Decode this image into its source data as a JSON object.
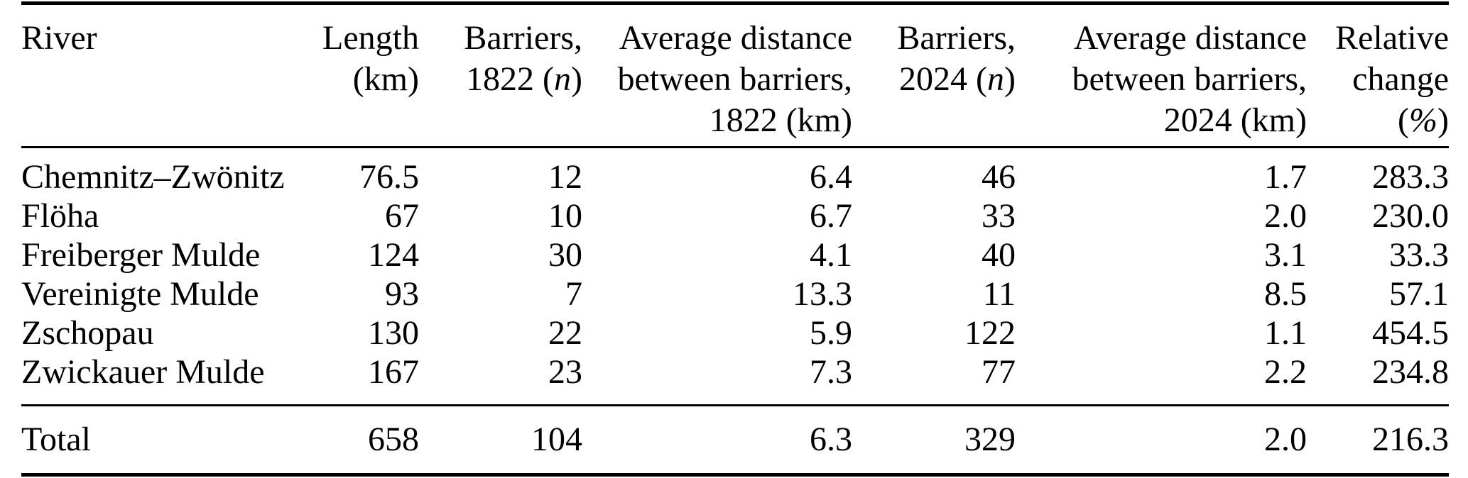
{
  "colors": {
    "background": "#ffffff",
    "text": "#000000",
    "rule": "#000000"
  },
  "table": {
    "columns": [
      {
        "id": "river",
        "lines": [
          [
            {
              "t": "River"
            }
          ]
        ]
      },
      {
        "id": "length-km",
        "lines": [
          [
            {
              "t": "Length"
            }
          ],
          [
            {
              "t": "(km)"
            }
          ]
        ]
      },
      {
        "id": "barriers-1822",
        "lines": [
          [
            {
              "t": "Barriers,"
            }
          ],
          [
            {
              "t": "1822 ("
            },
            {
              "t": "n",
              "i": true
            },
            {
              "t": ")"
            }
          ]
        ]
      },
      {
        "id": "avg-distance-1822",
        "lines": [
          [
            {
              "t": "Average distance"
            }
          ],
          [
            {
              "t": "between barriers,"
            }
          ],
          [
            {
              "t": "1822 (km)"
            }
          ]
        ]
      },
      {
        "id": "barriers-2024",
        "lines": [
          [
            {
              "t": "Barriers,"
            }
          ],
          [
            {
              "t": "2024 ("
            },
            {
              "t": "n",
              "i": true
            },
            {
              "t": ")"
            }
          ]
        ]
      },
      {
        "id": "avg-distance-2024",
        "lines": [
          [
            {
              "t": "Average distance"
            }
          ],
          [
            {
              "t": "between barriers,"
            }
          ],
          [
            {
              "t": "2024 (km)"
            }
          ]
        ]
      },
      {
        "id": "relative-change",
        "lines": [
          [
            {
              "t": "Relative"
            }
          ],
          [
            {
              "t": "change"
            }
          ],
          [
            {
              "t": "("
            },
            {
              "t": "%",
              "i": true
            },
            {
              "t": ")"
            }
          ]
        ]
      }
    ],
    "rows": [
      {
        "river": "Chemnitz–Zwönitz",
        "values": [
          "76.5",
          "12",
          "6.4",
          "46",
          "1.7",
          "283.3"
        ]
      },
      {
        "river": "Flöha",
        "values": [
          "67",
          "10",
          "6.7",
          "33",
          "2.0",
          "230.0"
        ]
      },
      {
        "river": "Freiberger Mulde",
        "values": [
          "124",
          "30",
          "4.1",
          "40",
          "3.1",
          "33.3"
        ]
      },
      {
        "river": "Vereinigte Mulde",
        "values": [
          "93",
          "7",
          "13.3",
          "11",
          "8.5",
          "57.1"
        ]
      },
      {
        "river": "Zschopau",
        "values": [
          "130",
          "22",
          "5.9",
          "122",
          "1.1",
          "454.5"
        ]
      },
      {
        "river": "Zwickauer Mulde",
        "values": [
          "167",
          "23",
          "7.3",
          "77",
          "2.2",
          "234.8"
        ]
      }
    ],
    "total": {
      "label": "Total",
      "values": [
        "658",
        "104",
        "6.3",
        "329",
        "2.0",
        "216.3"
      ]
    }
  }
}
